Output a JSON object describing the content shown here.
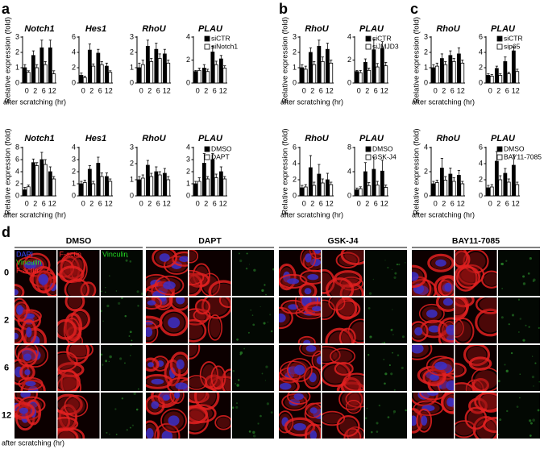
{
  "chart_data": [
    {
      "type": "bar",
      "label": "a",
      "y_label": "Relative expression (fold)",
      "x_label": "after scratching (hr)",
      "categories": [
        "0",
        "2",
        "6",
        "12"
      ],
      "series": [
        {
          "name": "siCTR",
          "color": "#000000"
        },
        {
          "name": "siNotch1",
          "color": "#ffffff"
        }
      ],
      "subplots": [
        {
          "title": "Notch1",
          "ylim": [
            0,
            3
          ],
          "yticks": [
            0,
            1,
            2,
            3
          ],
          "series": [
            {
              "values": [
                1.0,
                1.8,
                2.3,
                2.3
              ],
              "errors": [
                0.2,
                0.3,
                0.5,
                0.5
              ]
            },
            {
              "values": [
                0.7,
                1.0,
                1.2,
                0.6
              ],
              "errors": [
                0.1,
                0.2,
                0.2,
                0.2
              ]
            }
          ]
        },
        {
          "title": "Hes1",
          "ylim": [
            0,
            6
          ],
          "yticks": [
            0,
            2,
            4,
            6
          ],
          "series": [
            {
              "values": [
                1.0,
                4.3,
                3.9,
                2.2
              ],
              "errors": [
                0.3,
                0.8,
                0.5,
                0.4
              ]
            },
            {
              "values": [
                0.7,
                2.2,
                2.4,
                1.4
              ],
              "errors": [
                0.2,
                0.3,
                0.4,
                0.2
              ]
            }
          ]
        },
        {
          "title": "RhoU",
          "ylim": [
            0,
            3
          ],
          "yticks": [
            0,
            1,
            2,
            3
          ],
          "series": [
            {
              "values": [
                1.0,
                2.4,
                2.2,
                1.9
              ],
              "errors": [
                0.3,
                0.4,
                0.4,
                0.3
              ]
            },
            {
              "values": [
                1.2,
                1.4,
                1.6,
                1.3
              ],
              "errors": [
                0.3,
                0.2,
                0.3,
                0.2
              ]
            }
          ]
        },
        {
          "title": "PLAU",
          "ylim": [
            0,
            4
          ],
          "yticks": [
            0,
            2,
            4
          ],
          "series": [
            {
              "values": [
                1.0,
                1.3,
                2.7,
                2.1
              ],
              "errors": [
                0.1,
                0.3,
                0.5,
                0.3
              ]
            },
            {
              "values": [
                1.1,
                1.0,
                1.6,
                1.3
              ],
              "errors": [
                0.2,
                0.2,
                0.3,
                0.2
              ]
            }
          ]
        }
      ]
    },
    {
      "type": "bar",
      "y_label": "Relative expression (fold)",
      "x_label": "after scratching (hr)",
      "categories": [
        "0",
        "2",
        "6",
        "12"
      ],
      "series": [
        {
          "name": "DMSO",
          "color": "#000000"
        },
        {
          "name": "DAPT",
          "color": "#ffffff"
        }
      ],
      "subplots": [
        {
          "title": "Notch1",
          "ylim": [
            0,
            8
          ],
          "yticks": [
            0,
            2,
            4,
            6,
            8
          ],
          "series": [
            {
              "values": [
                1.0,
                5.5,
                6.0,
                4.0
              ],
              "errors": [
                0.4,
                0.6,
                1.2,
                0.8
              ]
            },
            {
              "values": [
                1.5,
                5.0,
                5.2,
                2.8
              ],
              "errors": [
                0.3,
                0.5,
                0.8,
                0.4
              ]
            }
          ]
        },
        {
          "title": "Hes1",
          "ylim": [
            0,
            4
          ],
          "yticks": [
            0,
            1,
            2,
            3,
            4
          ],
          "series": [
            {
              "values": [
                1.0,
                2.2,
                2.7,
                1.6
              ],
              "errors": [
                0.2,
                0.3,
                0.5,
                0.3
              ]
            },
            {
              "values": [
                1.1,
                1.0,
                1.6,
                1.2
              ],
              "errors": [
                0.2,
                0.2,
                0.3,
                0.2
              ]
            }
          ]
        },
        {
          "title": "RhoU",
          "ylim": [
            0,
            3
          ],
          "yticks": [
            0,
            1,
            2,
            3
          ],
          "series": [
            {
              "values": [
                1.0,
                1.9,
                1.5,
                1.4
              ],
              "errors": [
                0.2,
                0.3,
                0.3,
                0.3
              ]
            },
            {
              "values": [
                1.1,
                1.2,
                1.3,
                1.0
              ],
              "errors": [
                0.2,
                0.2,
                0.2,
                0.2
              ]
            }
          ]
        },
        {
          "title": "PLAU",
          "ylim": [
            0,
            4
          ],
          "yticks": [
            0,
            1,
            2,
            3,
            4
          ],
          "series": [
            {
              "values": [
                1.0,
                2.7,
                3.0,
                2.0
              ],
              "errors": [
                0.2,
                0.8,
                0.5,
                0.4
              ]
            },
            {
              "values": [
                1.2,
                1.4,
                1.5,
                1.4
              ],
              "errors": [
                0.3,
                0.2,
                0.3,
                0.2
              ]
            }
          ]
        }
      ]
    },
    {
      "type": "bar",
      "label": "b",
      "y_label": "Relative expression (fold)",
      "x_label": "after scratching (hr)",
      "categories": [
        "0",
        "2",
        "6",
        "12"
      ],
      "series": [
        {
          "name": "siCTR",
          "color": "#000000"
        },
        {
          "name": "siJMJD3",
          "color": "#ffffff"
        }
      ],
      "subplots": [
        {
          "title": "RhoU",
          "ylim": [
            0,
            3
          ],
          "yticks": [
            0,
            1,
            2,
            3
          ],
          "series": [
            {
              "values": [
                1.0,
                2.0,
                2.4,
                2.2
              ],
              "errors": [
                0.2,
                0.3,
                0.4,
                0.4
              ]
            },
            {
              "values": [
                0.9,
                1.2,
                1.4,
                1.3
              ],
              "errors": [
                0.2,
                0.2,
                0.3,
                0.2
              ]
            }
          ]
        },
        {
          "title": "PLAU",
          "ylim": [
            0,
            4
          ],
          "yticks": [
            0,
            2,
            4
          ],
          "series": [
            {
              "values": [
                1.0,
                1.8,
                2.9,
                3.0
              ],
              "errors": [
                0.1,
                0.3,
                0.9,
                0.6
              ]
            },
            {
              "values": [
                0.9,
                1.1,
                1.4,
                1.5
              ],
              "errors": [
                0.2,
                0.2,
                0.3,
                0.3
              ]
            }
          ]
        }
      ]
    },
    {
      "type": "bar",
      "y_label": "Relative expression (fold)",
      "x_label": "after scratching (hr)",
      "categories": [
        "0",
        "2",
        "6",
        "12"
      ],
      "series": [
        {
          "name": "DMSO",
          "color": "#000000"
        },
        {
          "name": "GSK-J4",
          "color": "#ffffff"
        }
      ],
      "subplots": [
        {
          "title": "RhoU",
          "ylim": [
            0,
            6
          ],
          "yticks": [
            0,
            2,
            4,
            6
          ],
          "series": [
            {
              "values": [
                1.0,
                3.5,
                2.7,
                2.0
              ],
              "errors": [
                0.3,
                1.5,
                1.2,
                0.8
              ]
            },
            {
              "values": [
                1.1,
                1.3,
                1.6,
                1.4
              ],
              "errors": [
                0.3,
                0.4,
                0.5,
                0.3
              ]
            }
          ]
        },
        {
          "title": "PLAU",
          "ylim": [
            0,
            8
          ],
          "yticks": [
            0,
            4,
            8
          ],
          "series": [
            {
              "values": [
                1.0,
                4.0,
                4.4,
                4.1
              ],
              "errors": [
                0.3,
                1.5,
                2.0,
                1.8
              ]
            },
            {
              "values": [
                1.2,
                1.7,
                1.8,
                1.4
              ],
              "errors": [
                0.3,
                0.5,
                0.6,
                0.4
              ]
            }
          ]
        }
      ]
    },
    {
      "type": "bar",
      "label": "c",
      "y_label": "Relative expression (fold)",
      "x_label": "after scratching (hr)",
      "categories": [
        "0",
        "2",
        "6",
        "12"
      ],
      "series": [
        {
          "name": "siCTR",
          "color": "#000000"
        },
        {
          "name": "sip65",
          "color": "#ffffff"
        }
      ],
      "subplots": [
        {
          "title": "RhoU",
          "ylim": [
            0,
            3
          ],
          "yticks": [
            0,
            1,
            2,
            3
          ],
          "series": [
            {
              "values": [
                1.0,
                1.6,
                1.8,
                1.9
              ],
              "errors": [
                0.2,
                0.3,
                0.3,
                0.4
              ]
            },
            {
              "values": [
                1.1,
                1.2,
                1.4,
                1.3
              ],
              "errors": [
                0.2,
                0.2,
                0.2,
                0.2
              ]
            }
          ]
        },
        {
          "title": "PLAU",
          "ylim": [
            0,
            6
          ],
          "yticks": [
            0,
            2,
            4,
            6
          ],
          "series": [
            {
              "values": [
                1.0,
                1.9,
                2.8,
                4.2
              ],
              "errors": [
                0.2,
                0.3,
                0.6,
                0.5
              ]
            },
            {
              "values": [
                0.9,
                1.0,
                1.2,
                1.5
              ],
              "errors": [
                0.2,
                0.2,
                0.2,
                0.3
              ]
            }
          ]
        }
      ]
    },
    {
      "type": "bar",
      "y_label": "Relative expression (fold)",
      "x_label": "after scratching (hr)",
      "categories": [
        "0",
        "2",
        "6",
        "12"
      ],
      "series": [
        {
          "name": "DMSO",
          "color": "#000000"
        },
        {
          "name": "BAY11-7085",
          "color": "#ffffff"
        }
      ],
      "subplots": [
        {
          "title": "RhoU",
          "ylim": [
            0,
            4
          ],
          "yticks": [
            0,
            2,
            4
          ],
          "series": [
            {
              "values": [
                1.0,
                2.3,
                1.8,
                1.7
              ],
              "errors": [
                0.2,
                0.8,
                0.5,
                0.4
              ]
            },
            {
              "values": [
                1.1,
                1.3,
                1.2,
                1.0
              ],
              "errors": [
                0.2,
                0.3,
                0.3,
                0.2
              ]
            }
          ]
        },
        {
          "title": "PLAU",
          "ylim": [
            0,
            6
          ],
          "yticks": [
            0,
            2,
            4,
            6
          ],
          "series": [
            {
              "values": [
                1.0,
                4.3,
                2.8,
                3.8
              ],
              "errors": [
                0.3,
                1.2,
                0.6,
                1.3
              ]
            },
            {
              "values": [
                1.1,
                2.0,
                1.7,
                1.4
              ],
              "errors": [
                0.3,
                0.5,
                0.4,
                0.3
              ]
            }
          ]
        }
      ]
    }
  ],
  "micrograph_panel": {
    "label": "d",
    "conditions": [
      "DMSO",
      "DAPT",
      "GSK-J4",
      "BAY11-7085"
    ],
    "time_points": [
      "0",
      "2",
      "6",
      "12"
    ],
    "channels": [
      "DAPI",
      "Vinculin",
      "F-actin"
    ],
    "x_label": "after scratching (hr)"
  }
}
